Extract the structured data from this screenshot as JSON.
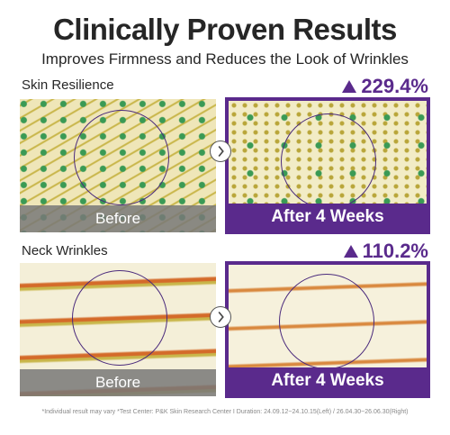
{
  "header": {
    "title": "Clinically Proven Results",
    "subtitle": "Improves Firmness and Reduces the Look of Wrinkles"
  },
  "rows": [
    {
      "label": "Skin Resilience",
      "change": "229.4%",
      "before": "Before",
      "after": "After 4 Weeks"
    },
    {
      "label": "Neck  Wrinkles",
      "change": "110.2%",
      "before": "Before",
      "after": "After 4 Weeks"
    }
  ],
  "footnote": "*Individual result may vary *Test Center: P&K Skin Research Center I Duration: 24.09.12~24.10.15(Left) / 26.04.30~26.06.30(Right)"
}
